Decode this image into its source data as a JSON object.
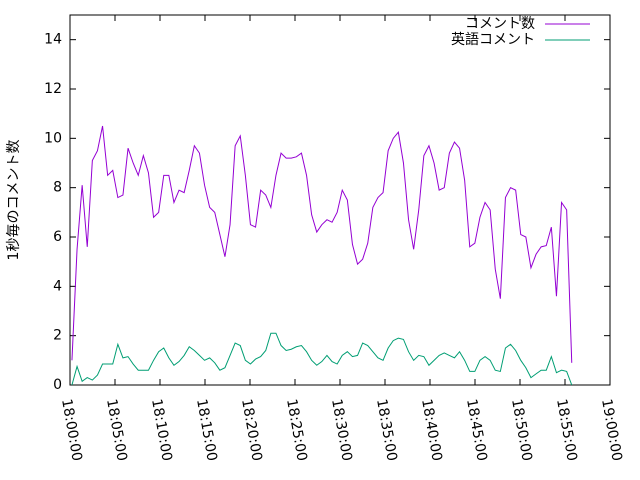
{
  "chart_data": {
    "type": "line",
    "y_label": "1秒毎のコメント数",
    "x": [
      "18:00:13",
      "18:00:47",
      "18:01:21",
      "18:01:55",
      "18:02:29",
      "18:03:03",
      "18:03:37",
      "18:04:11",
      "18:04:45",
      "18:05:19",
      "18:05:53",
      "18:06:27",
      "18:07:01",
      "18:07:35",
      "18:08:09",
      "18:08:43",
      "18:09:17",
      "18:09:51",
      "18:10:25",
      "18:10:59",
      "18:11:33",
      "18:12:07",
      "18:12:41",
      "18:13:15",
      "18:13:49",
      "18:14:23",
      "18:14:57",
      "18:15:31",
      "18:16:05",
      "18:16:39",
      "18:17:13",
      "18:17:47",
      "18:18:21",
      "18:18:55",
      "18:19:29",
      "18:20:03",
      "18:20:37",
      "18:21:11",
      "18:21:45",
      "18:22:19",
      "18:22:53",
      "18:23:27",
      "18:24:01",
      "18:24:35",
      "18:25:09",
      "18:25:43",
      "18:26:17",
      "18:26:51",
      "18:27:25",
      "18:27:59",
      "18:28:33",
      "18:29:07",
      "18:29:41",
      "18:30:15",
      "18:30:49",
      "18:31:23",
      "18:31:57",
      "18:32:31",
      "18:33:05",
      "18:33:39",
      "18:34:13",
      "18:34:47",
      "18:35:21",
      "18:35:55",
      "18:36:29",
      "18:37:03",
      "18:37:37",
      "18:38:11",
      "18:38:45",
      "18:39:19",
      "18:39:53",
      "18:40:27",
      "18:41:01",
      "18:41:35",
      "18:42:09",
      "18:42:43",
      "18:43:17",
      "18:43:51",
      "18:44:25",
      "18:44:59",
      "18:45:33",
      "18:46:07",
      "18:46:41",
      "18:47:15",
      "18:47:49",
      "18:48:23",
      "18:48:57",
      "18:49:31",
      "18:50:05",
      "18:50:39",
      "18:51:13",
      "18:51:47",
      "18:52:21",
      "18:52:55",
      "18:53:29",
      "18:54:03",
      "18:54:37",
      "18:55:11",
      "18:55:45"
    ],
    "series": [
      {
        "name": "コメント数",
        "color": "#9400d3",
        "values": [
          1.0,
          5.5,
          8.1,
          5.6,
          9.1,
          9.5,
          10.5,
          8.5,
          8.7,
          7.6,
          7.7,
          9.6,
          9.0,
          8.5,
          9.3,
          8.6,
          6.8,
          7.0,
          8.5,
          8.5,
          7.4,
          7.9,
          7.8,
          8.7,
          9.7,
          9.4,
          8.1,
          7.2,
          7.0,
          6.1,
          5.2,
          6.5,
          9.7,
          10.1,
          8.5,
          6.5,
          6.4,
          7.9,
          7.7,
          7.2,
          8.5,
          9.4,
          9.2,
          9.2,
          9.25,
          9.4,
          8.5,
          6.9,
          6.2,
          6.5,
          6.7,
          6.6,
          7.0,
          7.9,
          7.5,
          5.7,
          4.9,
          5.1,
          5.75,
          7.2,
          7.6,
          7.8,
          9.5,
          10.0,
          10.25,
          9.0,
          6.7,
          5.5,
          7.1,
          9.3,
          9.7,
          9.0,
          7.9,
          8.0,
          9.4,
          9.85,
          9.6,
          8.3,
          5.6,
          5.75,
          6.8,
          7.4,
          7.1,
          4.7,
          3.5,
          7.6,
          8.0,
          7.9,
          6.1,
          6.0,
          4.75,
          5.3,
          5.6,
          5.65,
          6.4,
          3.6,
          7.4,
          7.1,
          0.9
        ]
      },
      {
        "name": "英語コメント",
        "color": "#009e73",
        "values": [
          0,
          0.75,
          0.15,
          0.3,
          0.2,
          0.4,
          0.85,
          0.85,
          0.85,
          1.65,
          1.1,
          1.15,
          0.85,
          0.6,
          0.6,
          0.6,
          1.0,
          1.35,
          1.5,
          1.1,
          0.8,
          0.95,
          1.2,
          1.55,
          1.4,
          1.2,
          1.0,
          1.1,
          0.9,
          0.6,
          0.7,
          1.2,
          1.7,
          1.6,
          1.0,
          0.85,
          1.05,
          1.15,
          1.4,
          2.1,
          2.1,
          1.6,
          1.4,
          1.45,
          1.55,
          1.6,
          1.35,
          1.0,
          0.8,
          0.95,
          1.2,
          0.95,
          0.85,
          1.2,
          1.35,
          1.15,
          1.2,
          1.7,
          1.6,
          1.35,
          1.1,
          1.0,
          1.5,
          1.8,
          1.9,
          1.85,
          1.35,
          1.0,
          1.2,
          1.15,
          0.8,
          1.0,
          1.2,
          1.3,
          1.2,
          1.1,
          1.35,
          1.0,
          0.55,
          0.55,
          1.0,
          1.15,
          1.0,
          0.6,
          0.55,
          1.5,
          1.65,
          1.4,
          1.0,
          0.7,
          0.3,
          0.45,
          0.6,
          0.6,
          1.15,
          0.5,
          0.6,
          0.55,
          0
        ]
      }
    ],
    "xlim": [
      "18:00:00",
      "19:00:00"
    ],
    "xticks": [
      "18:00:00",
      "18:05:00",
      "18:10:00",
      "18:15:00",
      "18:20:00",
      "18:25:00",
      "18:30:00",
      "18:35:00",
      "18:40:00",
      "18:45:00",
      "18:50:00",
      "18:55:00",
      "19:00:00"
    ],
    "ylim": [
      0,
      15
    ],
    "yticks": [
      0,
      2,
      4,
      6,
      8,
      10,
      12,
      14
    ],
    "grid": false,
    "legend": "top-right"
  }
}
